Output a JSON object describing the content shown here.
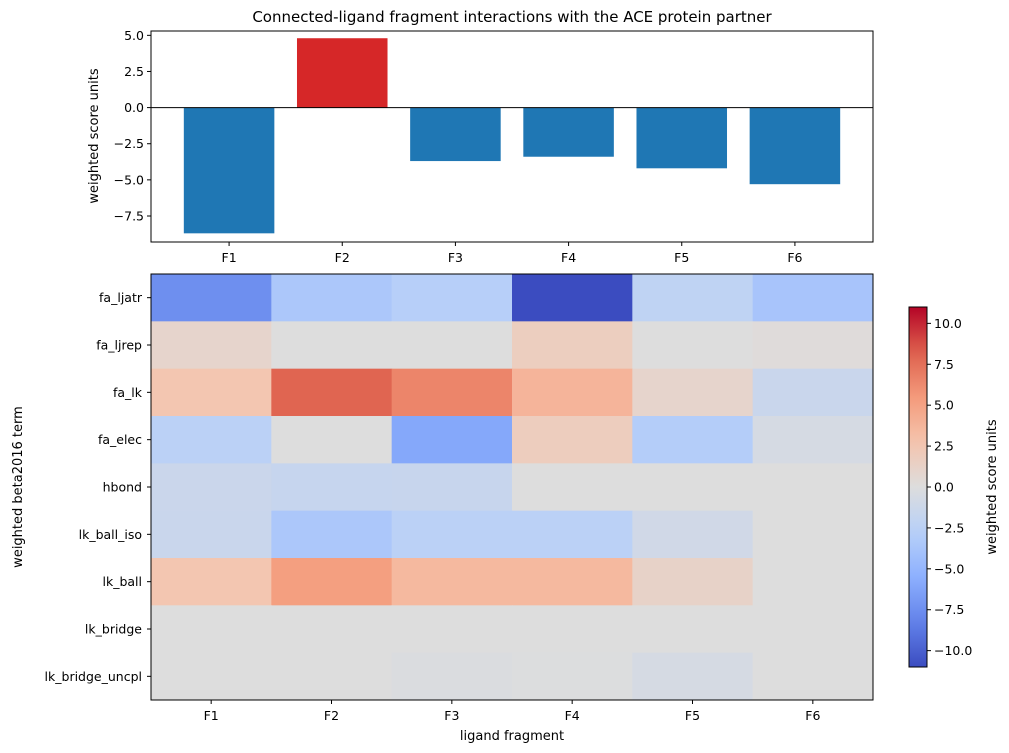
{
  "chart_data": [
    {
      "type": "bar",
      "title": "Connected-ligand fragment interactions with the ACE protein partner",
      "ylabel": "weighted score units",
      "xlabel": "",
      "categories": [
        "F1",
        "F2",
        "F3",
        "F4",
        "F5",
        "F6"
      ],
      "values": [
        -8.7,
        4.8,
        -3.7,
        -3.4,
        -4.2,
        -5.3
      ],
      "ylim": [
        -9.3,
        5.3
      ],
      "yticks": [
        5.0,
        2.5,
        0.0,
        -2.5,
        -5.0,
        -7.5
      ],
      "ytick_labels": [
        "5.0",
        "2.5",
        "0.0",
        "−2.5",
        "−5.0",
        "−7.5"
      ],
      "colors": {
        "negative": "#1f77b4",
        "positive": "#d62728"
      },
      "zero_line": true
    },
    {
      "type": "heatmap",
      "xlabel": "ligand fragment",
      "ylabel": "weighted beta2016 term",
      "x_categories": [
        "F1",
        "F2",
        "F3",
        "F4",
        "F5",
        "F6"
      ],
      "y_categories": [
        "fa_ljatr",
        "fa_ljrep",
        "fa_lk",
        "fa_elec",
        "hbond",
        "lk_ball_iso",
        "lk_ball",
        "lk_bridge",
        "lk_bridge_uncpl"
      ],
      "values": [
        [
          -7.5,
          -3.5,
          -2.8,
          -11.0,
          -2.2,
          -3.8
        ],
        [
          1.0,
          0.0,
          0.0,
          1.7,
          0.0,
          0.2
        ],
        [
          2.5,
          8.0,
          6.5,
          3.8,
          1.0,
          -1.5
        ],
        [
          -2.5,
          0.0,
          -6.0,
          1.8,
          -3.0,
          -0.6
        ],
        [
          -1.4,
          -1.7,
          -1.6,
          0.0,
          0.0,
          0.0
        ],
        [
          -1.5,
          -3.5,
          -2.5,
          -2.5,
          -1.0,
          0.0
        ],
        [
          2.5,
          5.2,
          3.5,
          3.5,
          1.2,
          0.0
        ],
        [
          0.0,
          0.0,
          0.0,
          0.0,
          0.0,
          0.0
        ],
        [
          0.0,
          0.0,
          -0.2,
          -0.1,
          -0.6,
          0.0
        ]
      ],
      "colormap": "coolwarm",
      "vmin": -11.0,
      "vmax": 11.0,
      "colorbar": {
        "label": "weighted score units",
        "ticks": [
          10.0,
          7.5,
          5.0,
          2.5,
          0.0,
          -2.5,
          -5.0,
          -7.5,
          -10.0
        ],
        "tick_labels": [
          "10.0",
          "7.5",
          "5.0",
          "2.5",
          "0.0",
          "−2.5",
          "−5.0",
          "−7.5",
          "−10.0"
        ]
      }
    }
  ]
}
